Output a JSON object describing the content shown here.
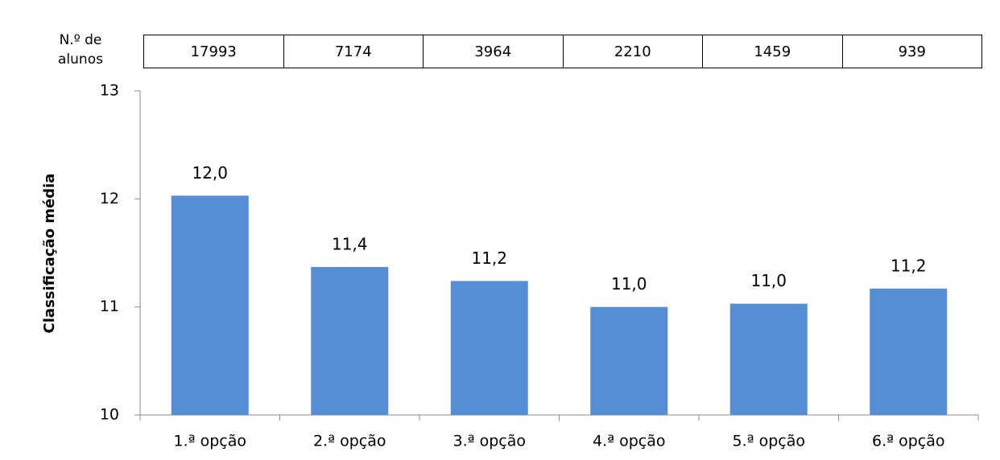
{
  "chart_data": {
    "type": "bar",
    "categories": [
      "1.ª opção",
      "2.ª opção",
      "3.ª opção",
      "4.ª opção",
      "5.ª opção",
      "6.ª opção"
    ],
    "values": [
      12.03,
      11.37,
      11.24,
      11.0,
      11.03,
      11.17
    ],
    "value_labels": [
      "12,0",
      "11,4",
      "11,2",
      "11,0",
      "11,0",
      "11,2"
    ],
    "color": "#558ed5",
    "ylabel": "Classificação média",
    "ylim": [
      10,
      13
    ],
    "yticks": [
      10,
      11,
      12,
      13
    ],
    "grid": false,
    "students": {
      "label": "N.º de alunos",
      "values": [
        17993,
        7174,
        3964,
        2210,
        1459,
        939
      ]
    }
  }
}
